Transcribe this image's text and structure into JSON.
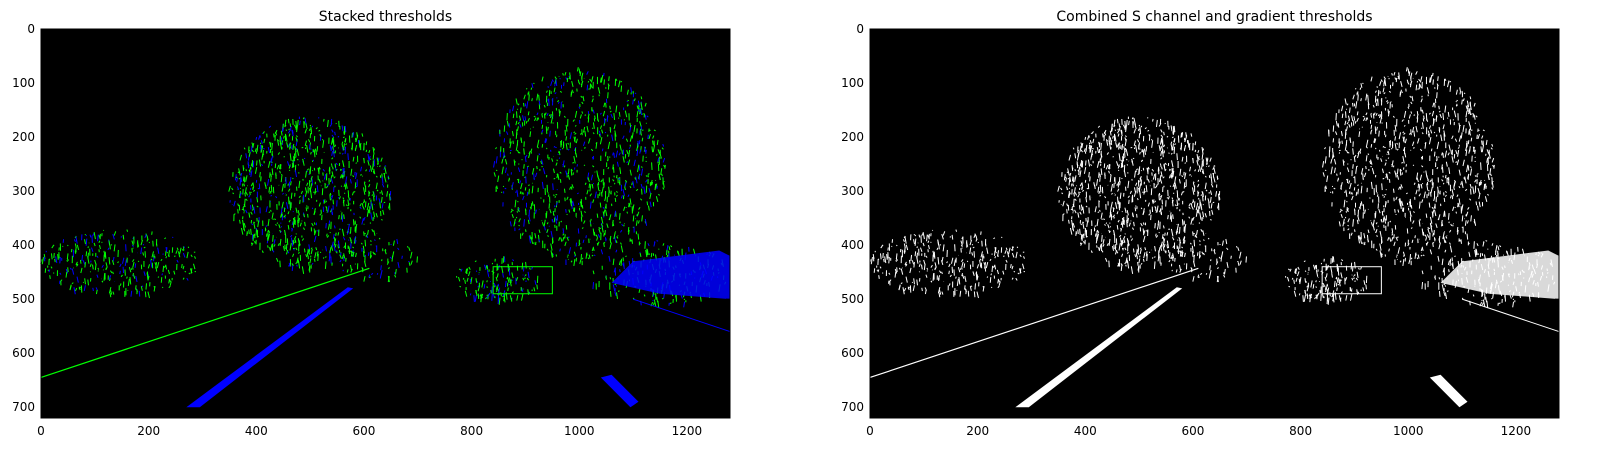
{
  "chart_data": [
    {
      "type": "image",
      "title": "Stacked thresholds",
      "xlim": [
        0,
        1280
      ],
      "ylim": [
        720,
        0
      ],
      "xticks": [
        0,
        200,
        400,
        600,
        800,
        1000,
        1200
      ],
      "yticks": [
        0,
        100,
        200,
        300,
        400,
        500,
        600,
        700
      ],
      "colors": [
        "#00ff00",
        "#0000ff"
      ]
    },
    {
      "type": "image",
      "title": "Combined S channel and gradient thresholds",
      "xlim": [
        0,
        1280
      ],
      "ylim": [
        720,
        0
      ],
      "xticks": [
        0,
        200,
        400,
        600,
        800,
        1000,
        1200
      ],
      "yticks": [
        0,
        100,
        200,
        300,
        400,
        500,
        600,
        700
      ],
      "colors": [
        "#ffffff",
        "#ffffff"
      ]
    }
  ]
}
